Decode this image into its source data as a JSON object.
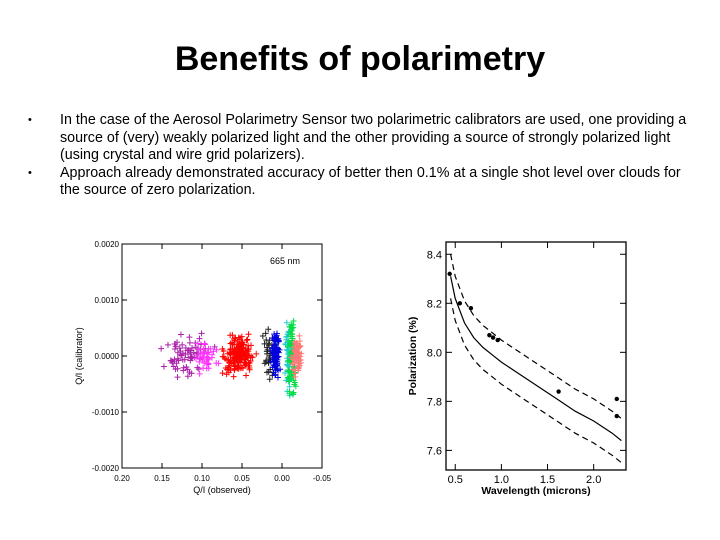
{
  "slide": {
    "title": "Benefits of polarimetry",
    "bullets": [
      "In the case of the Aerosol Polarimetry Sensor two polarimetric calibrators are used, one providing a source of (very) weakly polarized light and the other providing a source of strongly polarized light (using crystal and wire grid polarizers).",
      "Approach already demonstrated accuracy of better then 0.1% at a single shot level over clouds for the source of zero polarization."
    ],
    "bullet_symbol": "•"
  },
  "chart_data": [
    {
      "type": "scatter",
      "title": "",
      "annotation": "665 nm",
      "xlabel": "Q/I (observed)",
      "ylabel": "Q/I (calibrator)",
      "xlim": [
        0.2,
        -0.05
      ],
      "ylim": [
        -0.002,
        0.002
      ],
      "x_ticks": [
        "0.20",
        "0.15",
        "0.10",
        "0.05",
        "0.00",
        "-0.05"
      ],
      "x_tick_values": [
        0.2,
        0.15,
        0.1,
        0.05,
        0.0,
        -0.05
      ],
      "y_ticks": [
        "0.0020",
        "0.0010",
        "0.0000",
        "-0.0010",
        "-0.0020"
      ],
      "y_tick_values": [
        0.002,
        0.001,
        0.0,
        -0.001,
        -0.002
      ],
      "series": [
        {
          "name": "purple",
          "color": "#aa22aa",
          "x_center": 0.12,
          "x_spread": 0.045,
          "y_spread": 0.00035,
          "n": 70
        },
        {
          "name": "magenta",
          "color": "#ff33ff",
          "x_center": 0.095,
          "x_spread": 0.02,
          "y_spread": 0.00025,
          "n": 40
        },
        {
          "name": "red",
          "color": "#ff0000",
          "x_center": 0.055,
          "x_spread": 0.03,
          "y_spread": 0.0003,
          "n": 170
        },
        {
          "name": "dark",
          "color": "#222222",
          "x_center": 0.015,
          "x_spread": 0.012,
          "y_spread": 0.00045,
          "n": 35
        },
        {
          "name": "blue",
          "color": "#0000dd",
          "x_center": 0.008,
          "x_spread": 0.008,
          "y_spread": 0.0004,
          "n": 80
        },
        {
          "name": "cyan",
          "color": "#22cccc",
          "x_center": -0.008,
          "x_spread": 0.006,
          "y_spread": 0.0006,
          "n": 45
        },
        {
          "name": "green",
          "color": "#00dd44",
          "x_center": -0.012,
          "x_spread": 0.007,
          "y_spread": 0.0008,
          "n": 70
        },
        {
          "name": "pink",
          "color": "#ff7777",
          "x_center": -0.018,
          "x_spread": 0.01,
          "y_spread": 0.0004,
          "n": 60
        }
      ]
    },
    {
      "type": "line",
      "title": "",
      "xlabel": "Wavelength (microns)",
      "ylabel": "Polarization (%)",
      "xlim": [
        0.4,
        2.35
      ],
      "ylim": [
        7.52,
        8.45
      ],
      "x_ticks": [
        "0.5",
        "1.0",
        "1.5",
        "2.0"
      ],
      "x_tick_values": [
        0.5,
        1.0,
        1.5,
        2.0
      ],
      "y_ticks": [
        "8.4",
        "8.2",
        "8.0",
        "7.8",
        "7.6"
      ],
      "y_tick_values": [
        8.4,
        8.2,
        8.0,
        7.8,
        7.6
      ],
      "series": [
        {
          "name": "fit",
          "style": "solid",
          "x": [
            0.45,
            0.5,
            0.6,
            0.7,
            0.8,
            0.9,
            1.0,
            1.2,
            1.4,
            1.6,
            1.8,
            2.0,
            2.2,
            2.3
          ],
          "y": [
            8.31,
            8.22,
            8.12,
            8.06,
            8.02,
            7.99,
            7.96,
            7.91,
            7.86,
            7.81,
            7.76,
            7.72,
            7.67,
            7.64
          ]
        },
        {
          "name": "upper bound",
          "style": "dashed",
          "x": [
            0.45,
            0.5,
            0.6,
            0.7,
            0.8,
            0.9,
            1.0,
            1.2,
            1.4,
            1.6,
            1.8,
            2.0,
            2.2,
            2.3
          ],
          "y": [
            8.4,
            8.31,
            8.21,
            8.15,
            8.11,
            8.08,
            8.05,
            8.0,
            7.95,
            7.9,
            7.85,
            7.81,
            7.76,
            7.73
          ]
        },
        {
          "name": "lower bound",
          "style": "dashed",
          "x": [
            0.45,
            0.5,
            0.6,
            0.7,
            0.8,
            0.9,
            1.0,
            1.2,
            1.4,
            1.6,
            1.8,
            2.0,
            2.2,
            2.3
          ],
          "y": [
            8.22,
            8.13,
            8.03,
            7.97,
            7.93,
            7.9,
            7.87,
            7.82,
            7.77,
            7.72,
            7.67,
            7.63,
            7.58,
            7.55
          ]
        },
        {
          "name": "measurements",
          "style": "points",
          "x": [
            0.44,
            0.55,
            0.67,
            0.87,
            0.91,
            0.96,
            1.62,
            2.25,
            2.25
          ],
          "y": [
            8.32,
            8.2,
            8.18,
            8.07,
            8.06,
            8.05,
            7.84,
            7.74,
            7.81
          ]
        }
      ]
    }
  ]
}
